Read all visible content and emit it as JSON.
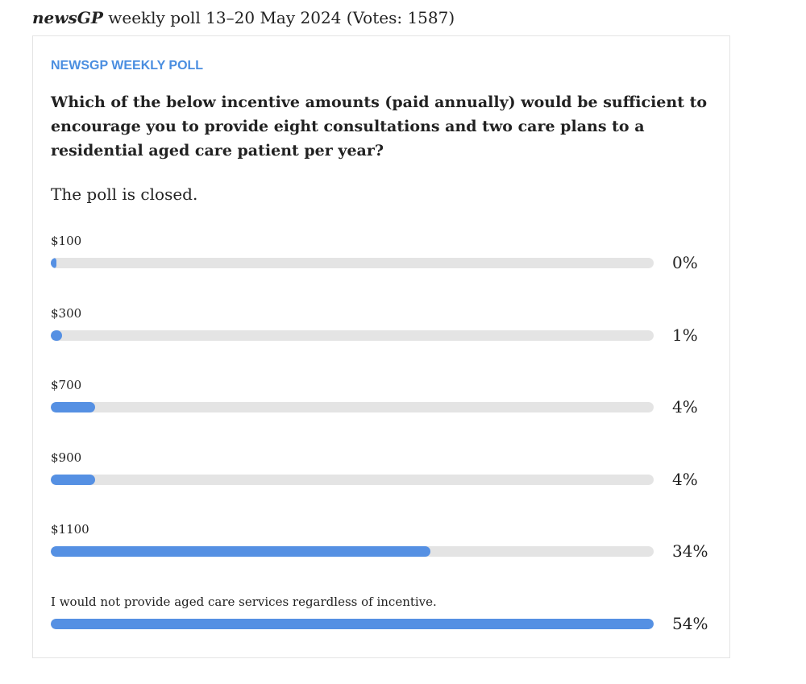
{
  "header": {
    "brand": "newsGP",
    "title": "weekly poll 13–20 May 2024 (Votes: 1587)"
  },
  "poll": {
    "label": "NEWSGP WEEKLY POLL",
    "question": "Which of the below incentive amounts (paid annually) would be sufficient to encourage you to provide eight consultations and two care plans to a residential aged care patient per year?",
    "status": "The poll is closed.",
    "color": "#5590e3",
    "options": [
      {
        "label": "$100",
        "value": 0,
        "value_label": "0%"
      },
      {
        "label": "$300",
        "value": 1,
        "value_label": "1%"
      },
      {
        "label": "$700",
        "value": 4,
        "value_label": "4%"
      },
      {
        "label": "$900",
        "value": 4,
        "value_label": "4%"
      },
      {
        "label": "$1100",
        "value": 34,
        "value_label": "34%"
      },
      {
        "label": "I would not provide aged care services regardless of incentive.",
        "value": 54,
        "value_label": "54%"
      }
    ]
  }
}
